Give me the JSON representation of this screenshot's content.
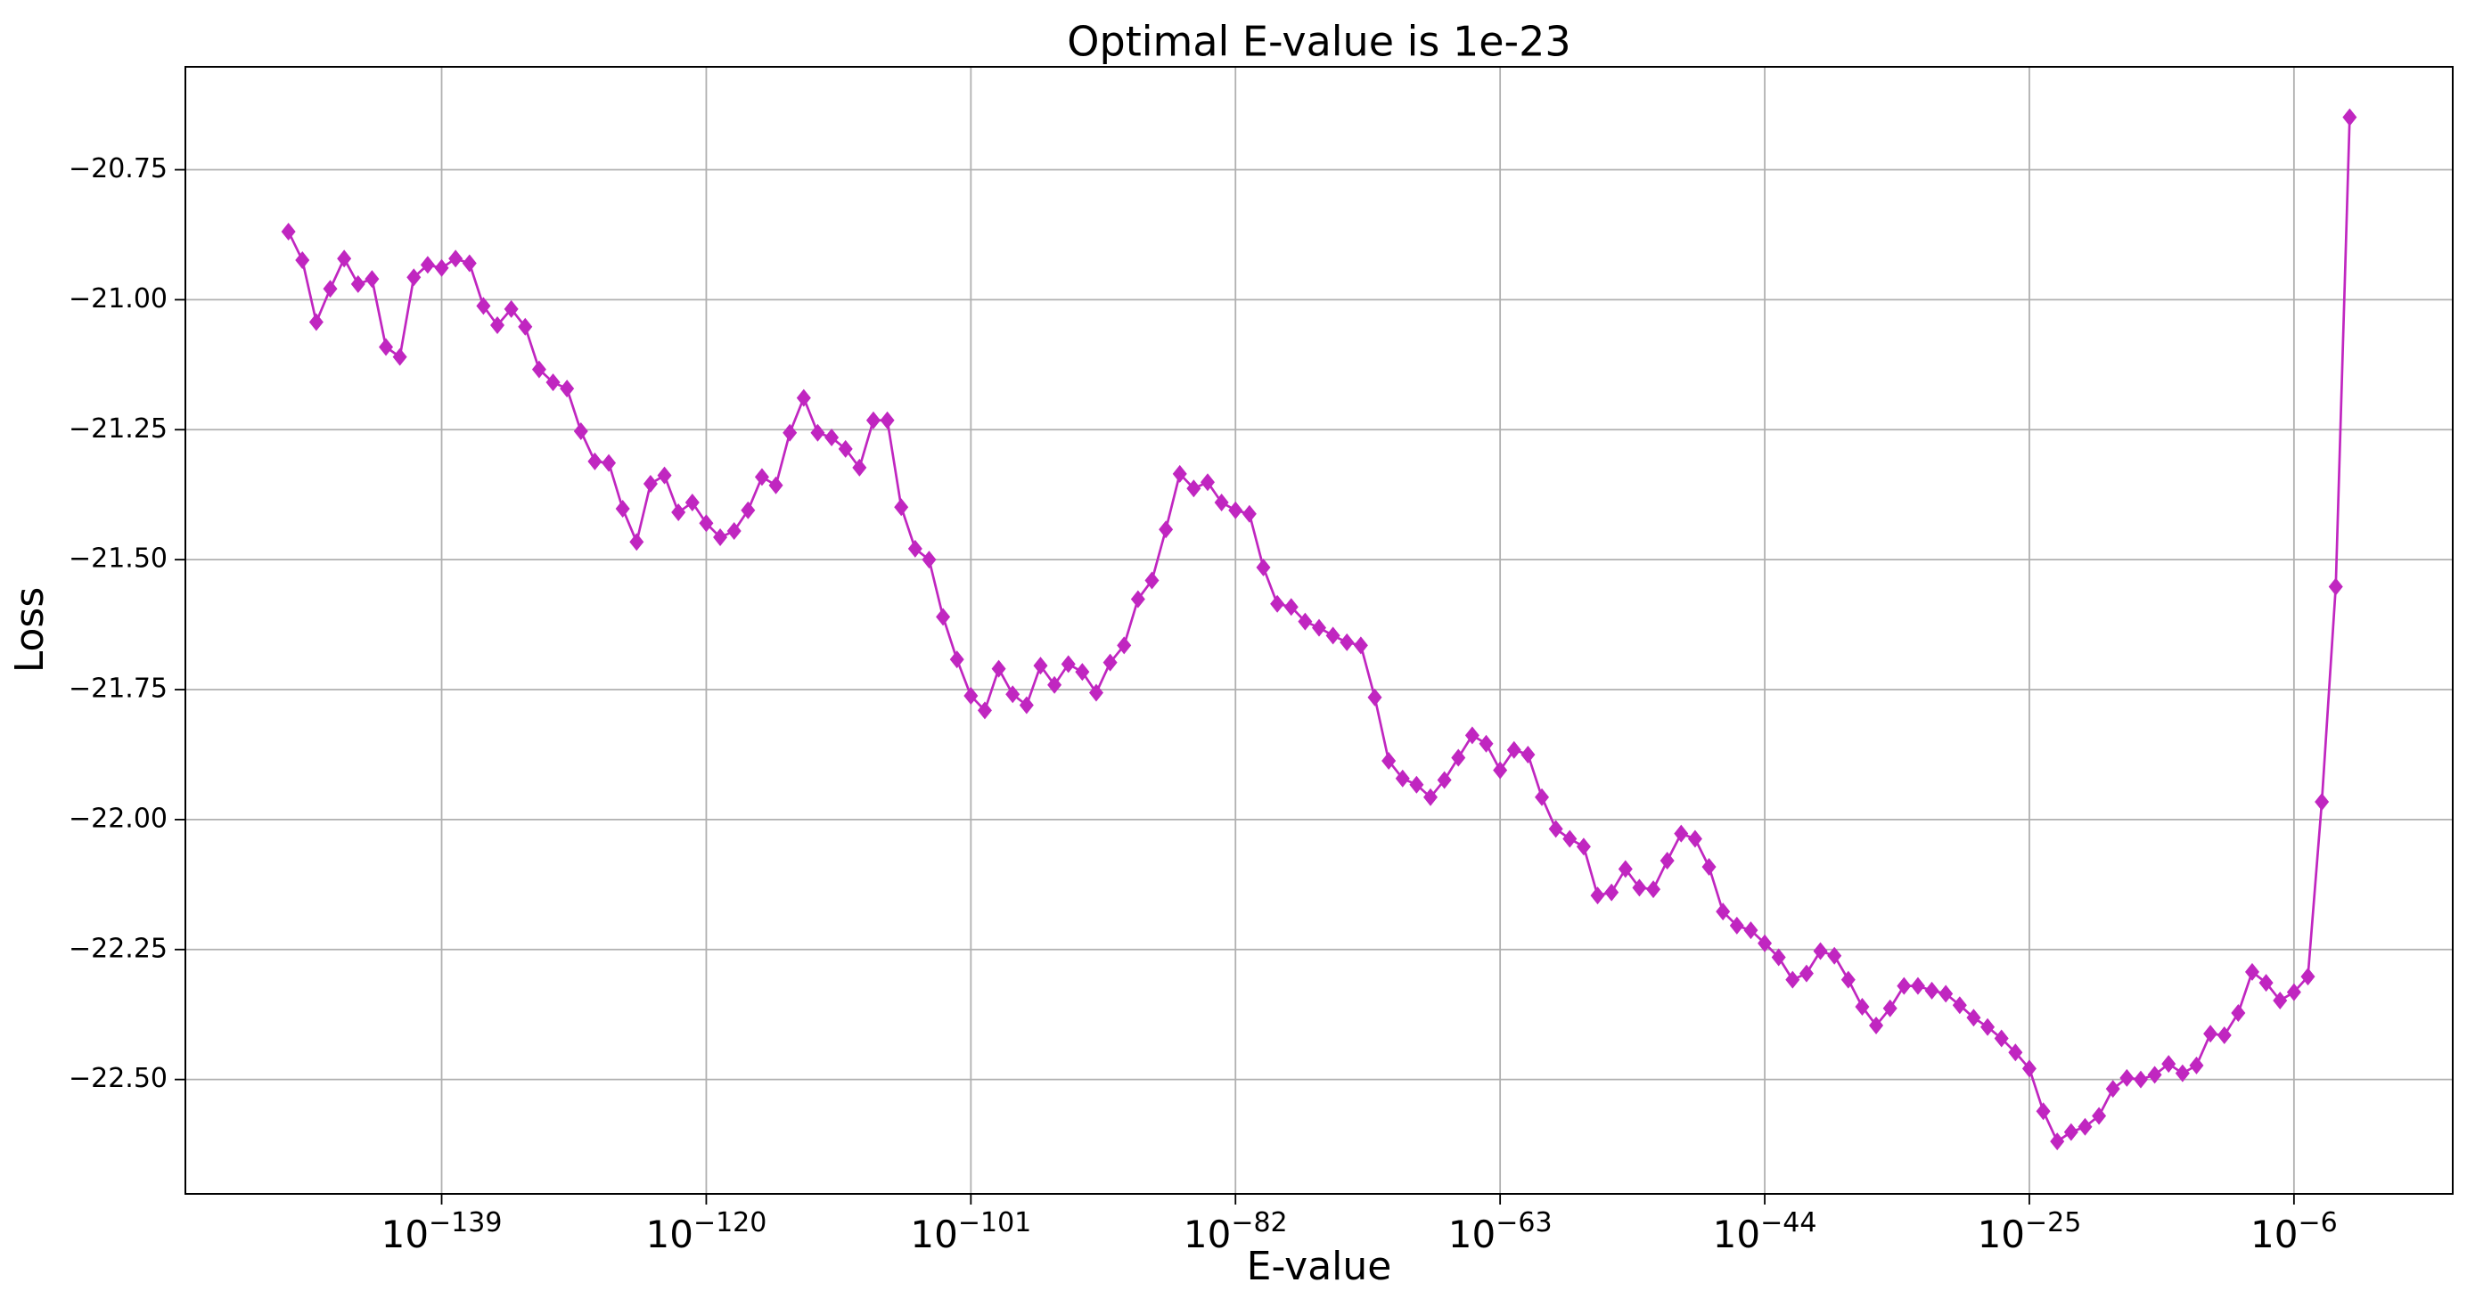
{
  "chart_data": {
    "type": "line",
    "title": "Optimal E-value is 1e-23",
    "xlabel": "E-value",
    "ylabel": "Loss",
    "xscale": "log",
    "grid": true,
    "color": "#c026c0",
    "marker": "diamond",
    "xlim": [
      3.98e-158,
      251000.0
    ],
    "ylim": [
      -22.72,
      -20.552
    ],
    "xticks": [
      {
        "value": 1e-139,
        "label": {
          "base": "10",
          "exponent": "−139"
        }
      },
      {
        "value": 1e-120,
        "label": {
          "base": "10",
          "exponent": "−120"
        }
      },
      {
        "value": 1e-101,
        "label": {
          "base": "10",
          "exponent": "−101"
        }
      },
      {
        "value": 1e-82,
        "label": {
          "base": "10",
          "exponent": "−82"
        }
      },
      {
        "value": 1e-63,
        "label": {
          "base": "10",
          "exponent": "−63"
        }
      },
      {
        "value": 1e-44,
        "label": {
          "base": "10",
          "exponent": "−44"
        }
      },
      {
        "value": 1e-25,
        "label": {
          "base": "10",
          "exponent": "−25"
        }
      },
      {
        "value": 1e-06,
        "label": {
          "base": "10",
          "exponent": "−6"
        }
      }
    ],
    "yticks": [
      {
        "value": -20.75,
        "label": "−20.75"
      },
      {
        "value": -21.0,
        "label": "−21.00"
      },
      {
        "value": -21.25,
        "label": "−21.25"
      },
      {
        "value": -21.5,
        "label": "−21.50"
      },
      {
        "value": -21.75,
        "label": "−21.75"
      },
      {
        "value": -22.0,
        "label": "−22.00"
      },
      {
        "value": -22.25,
        "label": "−22.25"
      },
      {
        "value": -22.5,
        "label": "−22.50"
      }
    ],
    "x": [
      1e-150,
      1e-149,
      1e-148,
      1e-147,
      1e-146,
      1e-145,
      1e-144,
      1e-143,
      1e-142,
      1e-141,
      1e-140,
      1e-139,
      1e-138,
      1e-137,
      1e-136,
      1e-135,
      1e-134,
      1e-133,
      1e-132,
      1e-131,
      1e-130,
      1e-129,
      1e-128,
      1e-127,
      1e-126,
      1e-125,
      1e-124,
      1e-123,
      1e-122,
      1e-121,
      1e-120,
      1e-119,
      1e-118,
      1e-117,
      1e-116,
      1e-115,
      1e-114,
      1e-113,
      1e-112,
      1e-111,
      1e-110,
      1e-109,
      1e-108,
      1e-107,
      1e-106,
      1e-105,
      1e-104,
      1e-103,
      1e-102,
      1e-101,
      1e-100,
      1e-99,
      1e-98,
      1e-97,
      1e-96,
      1e-95,
      1e-94,
      1e-93,
      1e-92,
      1e-91,
      1e-90,
      1e-89,
      1e-88,
      1e-87,
      1e-86,
      1e-85,
      1e-84,
      1e-83,
      1e-82,
      1e-81,
      1e-80,
      1e-79,
      1e-78,
      1e-77,
      1e-76,
      1e-75,
      1e-74,
      1e-73,
      1e-72,
      1e-71,
      1e-70,
      1e-69,
      1e-68,
      1e-67,
      1e-66,
      1e-65,
      1e-64,
      1e-63,
      1e-62,
      1e-61,
      1e-60,
      1e-59,
      1e-58,
      1e-57,
      1e-56,
      1e-55,
      1e-54,
      1e-53,
      1e-52,
      1e-51,
      1e-50,
      1e-49,
      1e-48,
      1e-47,
      1e-46,
      1e-45,
      1e-44,
      1e-43,
      1e-42,
      1e-41,
      1e-40,
      1e-39,
      1e-38,
      1e-37,
      1e-36,
      1e-35,
      1e-34,
      1e-33,
      1e-32,
      1e-31,
      1e-30,
      1e-29,
      1e-28,
      1e-27,
      1e-26,
      1e-25,
      1e-24,
      1e-23,
      1e-22,
      1e-21,
      1e-20,
      1e-19,
      1e-18,
      1e-17,
      1e-16,
      1e-15,
      1e-14,
      1e-13,
      1e-12,
      1e-11,
      1e-10,
      1e-09,
      1e-08,
      1e-07,
      1e-06,
      1e-05,
      0.0001,
      0.001,
      0.01
    ],
    "values": [
      -20.869,
      -20.924,
      -21.043,
      -20.979,
      -20.921,
      -20.97,
      -20.96,
      -21.091,
      -21.11,
      -20.957,
      -20.933,
      -20.939,
      -20.921,
      -20.93,
      -21.012,
      -21.049,
      -21.018,
      -21.052,
      -21.134,
      -21.159,
      -21.171,
      -21.253,
      -21.311,
      -21.314,
      -21.402,
      -21.466,
      -21.354,
      -21.338,
      -21.409,
      -21.39,
      -21.43,
      -21.457,
      -21.445,
      -21.405,
      -21.341,
      -21.357,
      -21.256,
      -21.189,
      -21.256,
      -21.265,
      -21.287,
      -21.323,
      -21.232,
      -21.232,
      -21.399,
      -21.479,
      -21.5,
      -21.61,
      -21.692,
      -21.762,
      -21.79,
      -21.71,
      -21.759,
      -21.78,
      -21.704,
      -21.741,
      -21.701,
      -21.716,
      -21.756,
      -21.698,
      -21.665,
      -21.576,
      -21.54,
      -21.442,
      -21.335,
      -21.363,
      -21.351,
      -21.39,
      -21.405,
      -21.412,
      -21.515,
      -21.585,
      -21.591,
      -21.619,
      -21.631,
      -21.646,
      -21.659,
      -21.665,
      -21.765,
      -21.887,
      -21.921,
      -21.933,
      -21.957,
      -21.924,
      -21.881,
      -21.838,
      -21.854,
      -21.905,
      -21.866,
      -21.875,
      -21.957,
      -22.018,
      -22.037,
      -22.052,
      -22.146,
      -22.14,
      -22.095,
      -22.131,
      -22.134,
      -22.079,
      -22.027,
      -22.037,
      -22.091,
      -22.177,
      -22.204,
      -22.213,
      -22.238,
      -22.265,
      -22.308,
      -22.296,
      -22.253,
      -22.262,
      -22.308,
      -22.36,
      -22.396,
      -22.363,
      -22.32,
      -22.32,
      -22.329,
      -22.335,
      -22.357,
      -22.381,
      -22.399,
      -22.421,
      -22.448,
      -22.479,
      -22.561,
      -22.619,
      -22.601,
      -22.591,
      -22.57,
      -22.518,
      -22.497,
      -22.5,
      -22.491,
      -22.47,
      -22.488,
      -22.473,
      -22.412,
      -22.415,
      -22.372,
      -22.293,
      -22.314,
      -22.348,
      -22.332,
      -22.302,
      -21.966,
      -21.552,
      -20.649
    ]
  }
}
